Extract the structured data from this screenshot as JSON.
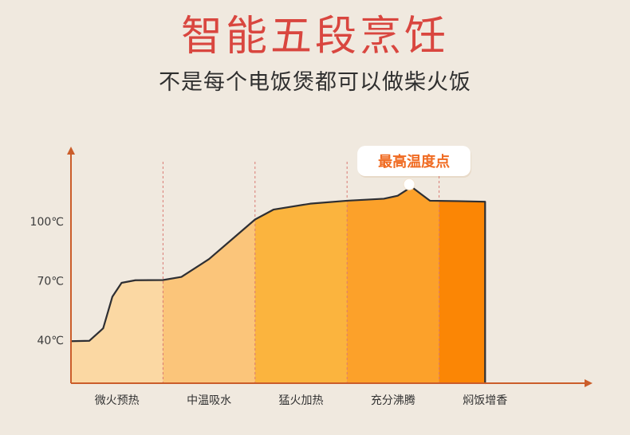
{
  "header": {
    "title": "智能五段烹饪",
    "subtitle": "不是每个电饭煲都可以做柴火饭"
  },
  "chart_data": {
    "type": "area",
    "categories": [
      "微火预热",
      "中温吸水",
      "猛火加热",
      "充分沸腾",
      "焖饭增香"
    ],
    "y_ticks": [
      {
        "label": "40℃",
        "value": 40
      },
      {
        "label": "70℃",
        "value": 70
      },
      {
        "label": "100℃",
        "value": 100
      }
    ],
    "annotation": {
      "text": "最高温度点",
      "x": 3.25,
      "y": 118
    },
    "curve": [
      {
        "x": 0.0,
        "y": 39.5
      },
      {
        "x": 0.2,
        "y": 39.7
      },
      {
        "x": 0.35,
        "y": 46
      },
      {
        "x": 0.45,
        "y": 62
      },
      {
        "x": 0.55,
        "y": 69
      },
      {
        "x": 0.7,
        "y": 70.3
      },
      {
        "x": 1.0,
        "y": 70.4
      },
      {
        "x": 1.2,
        "y": 72
      },
      {
        "x": 1.5,
        "y": 81
      },
      {
        "x": 1.8,
        "y": 93
      },
      {
        "x": 2.0,
        "y": 101
      },
      {
        "x": 2.2,
        "y": 106
      },
      {
        "x": 2.6,
        "y": 109
      },
      {
        "x": 3.0,
        "y": 110.5
      },
      {
        "x": 3.4,
        "y": 111.5
      },
      {
        "x": 3.55,
        "y": 113
      },
      {
        "x": 3.7,
        "y": 117.5
      },
      {
        "x": 3.8,
        "y": 114
      },
      {
        "x": 3.9,
        "y": 110.5
      },
      {
        "x": 4.2,
        "y": 110.3
      },
      {
        "x": 4.5,
        "y": 110
      }
    ],
    "colors": {
      "segments": [
        "#fbd8a3",
        "#fbc57a",
        "#fbb43e",
        "#fca12a",
        "#fb8605"
      ],
      "outline": "#2e2f33",
      "axis": "#cb5d2a",
      "divider": "#d97a73",
      "callout": "#f06b22",
      "title": "#d9463f"
    }
  }
}
